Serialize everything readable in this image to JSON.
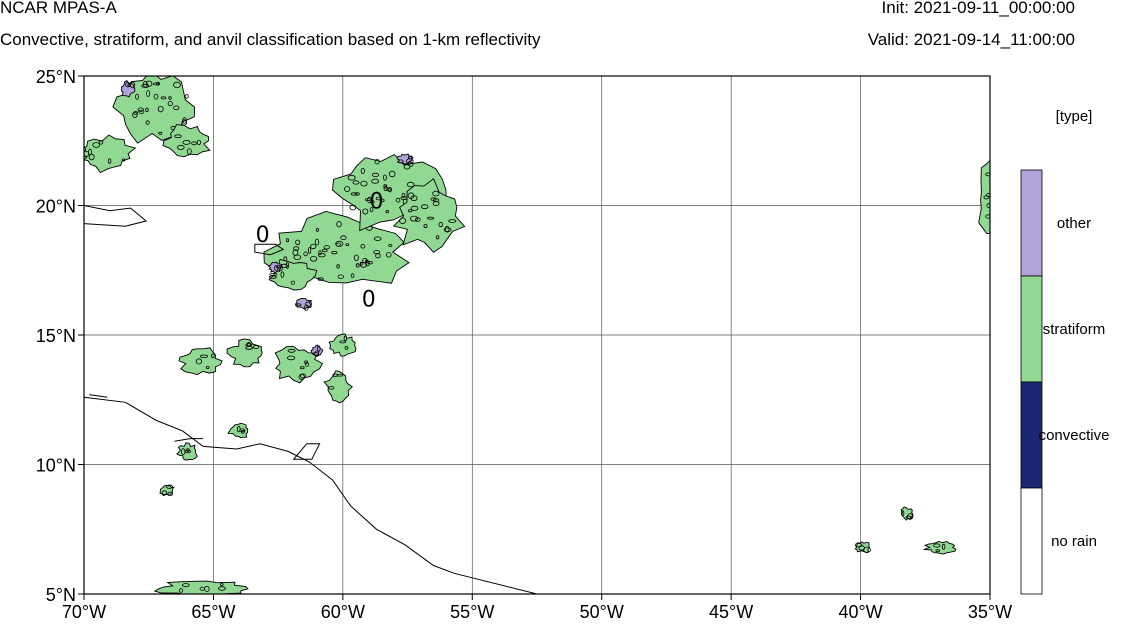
{
  "header": {
    "title": "NCAR MPAS-A",
    "subtitle": "Convective, stratiform, and anvil classification based on 1-km reflectivity",
    "init": "Init: 2021-09-11_00:00:00",
    "valid": "Valid: 2021-09-14_11:00:00"
  },
  "map": {
    "lon_range": [
      -70,
      -35
    ],
    "lat_range": [
      5,
      25
    ],
    "x_ticks": [
      {
        "lon": -70,
        "label": "70°W"
      },
      {
        "lon": -65,
        "label": "65°W"
      },
      {
        "lon": -60,
        "label": "60°W"
      },
      {
        "lon": -55,
        "label": "55°W"
      },
      {
        "lon": -50,
        "label": "50°W"
      },
      {
        "lon": -45,
        "label": "45°W"
      },
      {
        "lon": -40,
        "label": "40°W"
      },
      {
        "lon": -35,
        "label": "35°W"
      }
    ],
    "y_ticks": [
      {
        "lat": 25,
        "label": "25°N"
      },
      {
        "lat": 20,
        "label": "20°N"
      },
      {
        "lat": 15,
        "label": "15°N"
      },
      {
        "lat": 10,
        "label": "10°N"
      },
      {
        "lat": 5,
        "label": "5°N"
      }
    ],
    "contour_labels": [
      {
        "lon": -58.7,
        "lat": 20.2,
        "text": "0"
      },
      {
        "lon": -63.1,
        "lat": 18.9,
        "text": "0"
      },
      {
        "lon": -59.0,
        "lat": 16.4,
        "text": "0"
      }
    ],
    "coastlines": [
      [
        [
          -70,
          20
        ],
        [
          -69,
          19.8
        ],
        [
          -68.2,
          19.9
        ],
        [
          -67.6,
          19.4
        ],
        [
          -68.4,
          19.2
        ],
        [
          -70,
          19.3
        ]
      ],
      [
        [
          -63.4,
          18.5
        ],
        [
          -62.6,
          18.5
        ],
        [
          -62.3,
          18.3
        ],
        [
          -62.8,
          18.1
        ],
        [
          -63.4,
          18.2
        ],
        [
          -63.4,
          18.5
        ]
      ],
      [
        [
          -70,
          12.6
        ],
        [
          -68.4,
          12.4
        ],
        [
          -67.2,
          11.7
        ],
        [
          -66.2,
          11.3
        ],
        [
          -65.4,
          10.7
        ],
        [
          -64.1,
          10.6
        ],
        [
          -63.2,
          10.8
        ],
        [
          -62.1,
          10.5
        ],
        [
          -61.3,
          10.1
        ],
        [
          -60.4,
          9.4
        ],
        [
          -59.7,
          8.4
        ],
        [
          -58.7,
          7.5
        ],
        [
          -57.6,
          6.9
        ],
        [
          -56.5,
          6.1
        ],
        [
          -55.7,
          5.8
        ],
        [
          -52.5,
          5.0
        ]
      ],
      [
        [
          -61.4,
          10.8
        ],
        [
          -60.9,
          10.8
        ],
        [
          -61.2,
          10.2
        ],
        [
          -61.9,
          10.2
        ],
        [
          -61.4,
          10.8
        ]
      ],
      [
        [
          -66.5,
          10.9
        ],
        [
          -65.9,
          11.0
        ],
        [
          -65.4,
          11.0
        ]
      ],
      [
        [
          -69.8,
          12.7
        ],
        [
          -69.1,
          12.6
        ]
      ]
    ],
    "precip_cells": [
      {
        "lon": -67.2,
        "lat": 23.8,
        "rx": 1.6,
        "ry": 1.4,
        "type": "stratiform"
      },
      {
        "lon": -69.2,
        "lat": 22.0,
        "rx": 1.1,
        "ry": 0.7,
        "type": "stratiform"
      },
      {
        "lon": -66.0,
        "lat": 22.5,
        "rx": 0.9,
        "ry": 0.6,
        "type": "stratiform"
      },
      {
        "lon": -68.3,
        "lat": 24.5,
        "rx": 0.3,
        "ry": 0.3,
        "type": "other"
      },
      {
        "lon": -60.2,
        "lat": 18.2,
        "rx": 2.8,
        "ry": 1.4,
        "type": "stratiform"
      },
      {
        "lon": -58.3,
        "lat": 20.6,
        "rx": 2.2,
        "ry": 1.5,
        "type": "stratiform"
      },
      {
        "lon": -56.7,
        "lat": 19.6,
        "rx": 1.3,
        "ry": 1.3,
        "type": "stratiform"
      },
      {
        "lon": -62.0,
        "lat": 17.3,
        "rx": 0.9,
        "ry": 0.6,
        "type": "stratiform"
      },
      {
        "lon": -57.6,
        "lat": 21.8,
        "rx": 0.3,
        "ry": 0.2,
        "type": "other"
      },
      {
        "lon": -61.5,
        "lat": 16.2,
        "rx": 0.3,
        "ry": 0.2,
        "type": "other"
      },
      {
        "lon": -62.6,
        "lat": 17.6,
        "rx": 0.25,
        "ry": 0.2,
        "type": "other"
      },
      {
        "lon": -65.5,
        "lat": 14.0,
        "rx": 0.8,
        "ry": 0.5,
        "type": "stratiform"
      },
      {
        "lon": -63.7,
        "lat": 14.3,
        "rx": 0.7,
        "ry": 0.5,
        "type": "stratiform"
      },
      {
        "lon": -61.8,
        "lat": 13.9,
        "rx": 0.9,
        "ry": 0.7,
        "type": "stratiform"
      },
      {
        "lon": -60.2,
        "lat": 13.0,
        "rx": 0.5,
        "ry": 0.6,
        "type": "stratiform"
      },
      {
        "lon": -60.0,
        "lat": 14.6,
        "rx": 0.5,
        "ry": 0.4,
        "type": "stratiform"
      },
      {
        "lon": -61.0,
        "lat": 14.4,
        "rx": 0.2,
        "ry": 0.2,
        "type": "other"
      },
      {
        "lon": -64.0,
        "lat": 11.3,
        "rx": 0.4,
        "ry": 0.3,
        "type": "stratiform"
      },
      {
        "lon": -66.0,
        "lat": 10.5,
        "rx": 0.4,
        "ry": 0.3,
        "type": "stratiform"
      },
      {
        "lon": -65.5,
        "lat": 5.2,
        "rx": 1.8,
        "ry": 0.3,
        "type": "stratiform"
      },
      {
        "lon": -66.8,
        "lat": 9.0,
        "rx": 0.3,
        "ry": 0.2,
        "type": "stratiform"
      },
      {
        "lon": -34.9,
        "lat": 20.2,
        "rx": 0.6,
        "ry": 1.5,
        "type": "stratiform"
      },
      {
        "lon": -38.2,
        "lat": 8.1,
        "rx": 0.25,
        "ry": 0.25,
        "type": "stratiform"
      },
      {
        "lon": -36.9,
        "lat": 6.8,
        "rx": 0.6,
        "ry": 0.25,
        "type": "stratiform"
      },
      {
        "lon": -39.9,
        "lat": 6.8,
        "rx": 0.3,
        "ry": 0.2,
        "type": "stratiform"
      }
    ]
  },
  "legend": {
    "title": "[type]",
    "classes": [
      {
        "label": "other",
        "color": "#b3a3db"
      },
      {
        "label": "stratiform",
        "color": "#91d993"
      },
      {
        "label": "convective",
        "color": "#1b2772"
      },
      {
        "label": "no rain",
        "color": "#ffffff"
      }
    ]
  }
}
